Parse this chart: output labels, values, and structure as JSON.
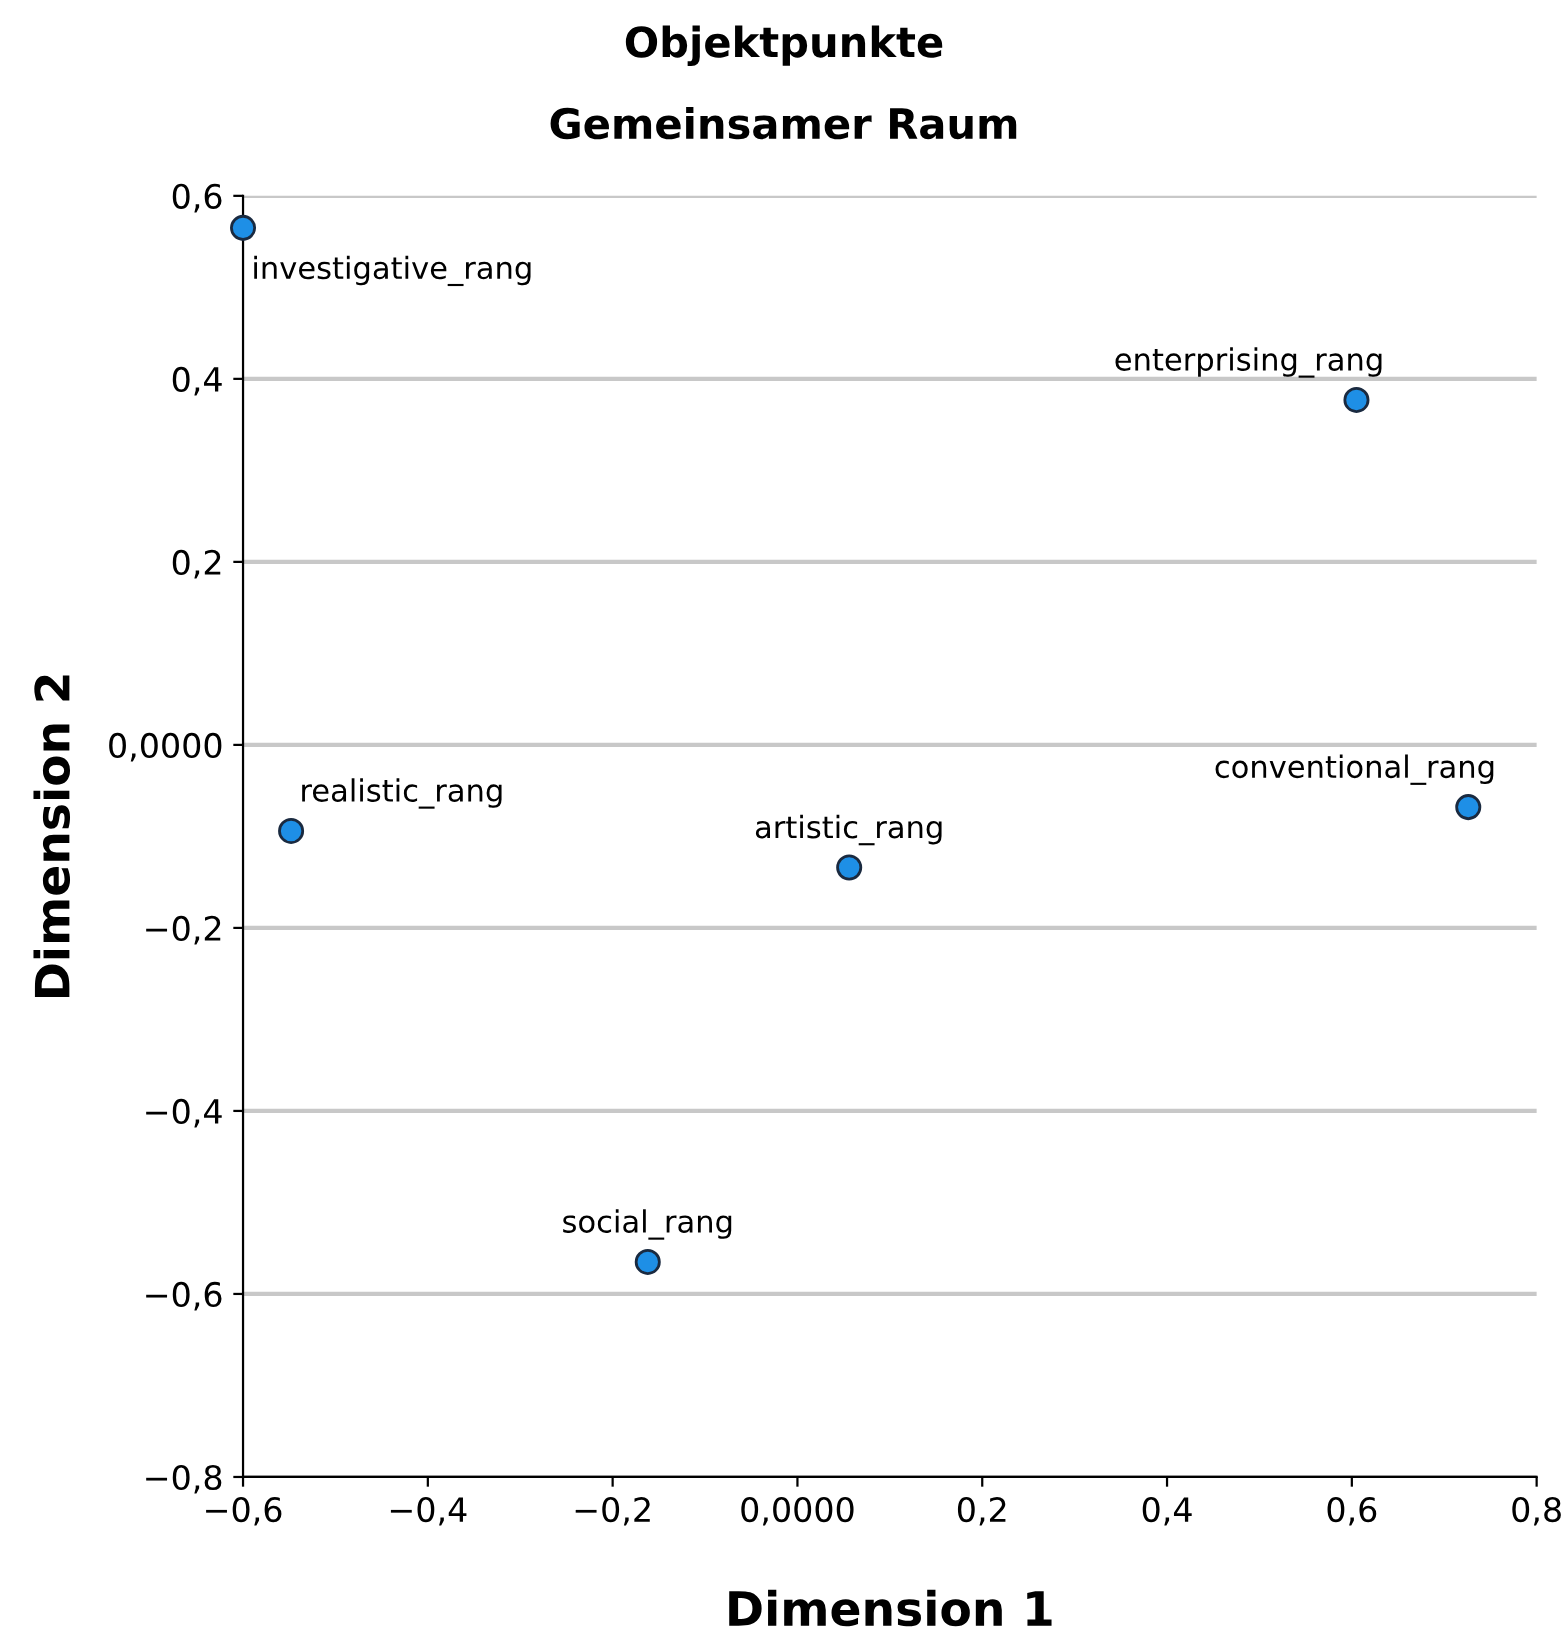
{
  "chart_data": {
    "type": "scatter",
    "title": "Objektpunkte",
    "subtitle": "Gemeinsamer Raum",
    "xlabel": "Dimension 1",
    "ylabel": "Dimension 2",
    "series": [
      {
        "color": "#1e8fe6",
        "x": [
          -0.6,
          0.605,
          0.726,
          -0.548,
          0.056,
          -0.162
        ],
        "values": [
          0.565,
          0.377,
          -0.068,
          -0.094,
          -0.134,
          -0.565
        ]
      }
    ],
    "annotations": [
      {
        "text": "investigative_rang",
        "x": -0.6,
        "y": 0.565
      },
      {
        "text": "enterprising_rang",
        "x": 0.605,
        "y": 0.377
      },
      {
        "text": "conventional_rang",
        "x": 0.726,
        "y": -0.068
      },
      {
        "text": "realistic_rang",
        "x": -0.548,
        "y": -0.094
      },
      {
        "text": "artistic_rang",
        "x": 0.056,
        "y": -0.134
      },
      {
        "text": "social_rang",
        "x": -0.162,
        "y": -0.565
      }
    ],
    "xlim": [
      -0.6,
      0.8
    ],
    "ylim": [
      -0.8,
      0.6
    ],
    "xticks": [
      {
        "value": -0.6,
        "label": "−0,6"
      },
      {
        "value": -0.4,
        "label": "−0,4"
      },
      {
        "value": -0.2,
        "label": "−0,2"
      },
      {
        "value": 0,
        "label": "0,0000"
      },
      {
        "value": 0.2,
        "label": "0,2"
      },
      {
        "value": 0.4,
        "label": "0,4"
      },
      {
        "value": 0.6,
        "label": "0,6"
      },
      {
        "value": 0.8,
        "label": "0,8"
      }
    ],
    "yticks": [
      {
        "value": -0.8,
        "label": "−0,8"
      },
      {
        "value": -0.6,
        "label": "−0,6"
      },
      {
        "value": -0.4,
        "label": "−0,4"
      },
      {
        "value": -0.2,
        "label": "−0,2"
      },
      {
        "value": 0,
        "label": "0,0000"
      },
      {
        "value": 0.2,
        "label": "0,2"
      },
      {
        "value": 0.4,
        "label": "0,4"
      },
      {
        "value": 0.6,
        "label": "0,6"
      }
    ],
    "grid": "y",
    "marker": "circle",
    "legend": false
  }
}
